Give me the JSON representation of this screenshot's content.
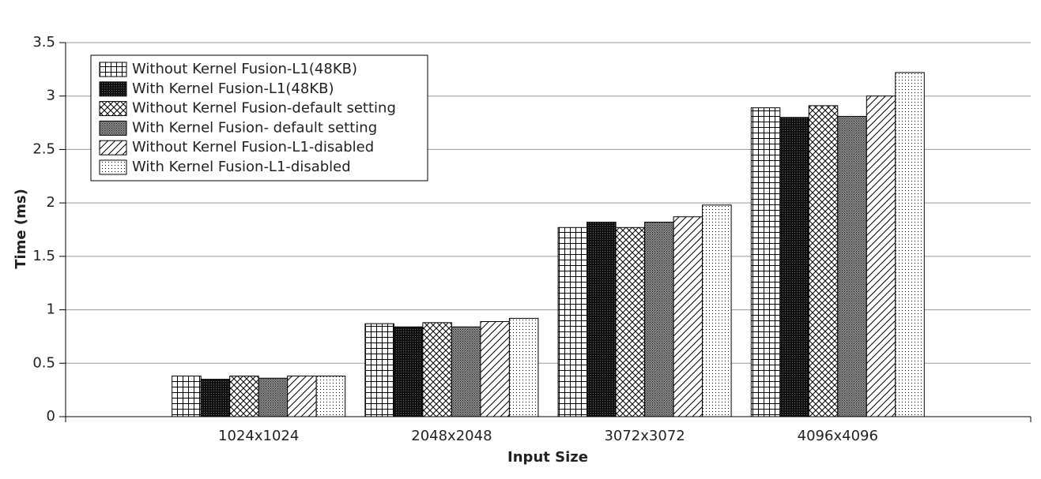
{
  "chart_data": {
    "type": "bar",
    "x_label": "Input Size",
    "y_label": "Time (ms)",
    "categories": [
      "1024x1024",
      "2048x2048",
      "3072x3072",
      "4096x4096"
    ],
    "series": [
      {
        "name": "Without Kernel Fusion-L1(48KB)",
        "color": "#000000",
        "pattern": "grid",
        "values": [
          0.38,
          0.87,
          1.77,
          2.89
        ]
      },
      {
        "name": "With Kernel Fusion-L1(48KB)",
        "color": "#000000",
        "pattern": "solid",
        "values": [
          0.35,
          0.84,
          1.82,
          2.8
        ]
      },
      {
        "name": "Without Kernel Fusion-default setting",
        "color": "#000000",
        "pattern": "cross",
        "values": [
          0.38,
          0.88,
          1.77,
          2.91
        ]
      },
      {
        "name": "With Kernel Fusion- default setting",
        "color": "#000000",
        "pattern": "dense",
        "values": [
          0.36,
          0.84,
          1.82,
          2.81
        ]
      },
      {
        "name": "Without Kernel Fusion-L1-disabled",
        "color": "#000000",
        "pattern": "diag",
        "values": [
          0.38,
          0.89,
          1.87,
          3.0
        ]
      },
      {
        "name": "With Kernel Fusion-L1-disabled",
        "color": "#000000",
        "pattern": "dots",
        "values": [
          0.38,
          0.92,
          1.98,
          3.22
        ]
      }
    ],
    "ylim": [
      0,
      3.5
    ],
    "yticks": [
      0,
      0.5,
      1,
      1.5,
      2,
      2.5,
      3,
      3.5
    ],
    "grid": true,
    "legend": "upper left"
  }
}
